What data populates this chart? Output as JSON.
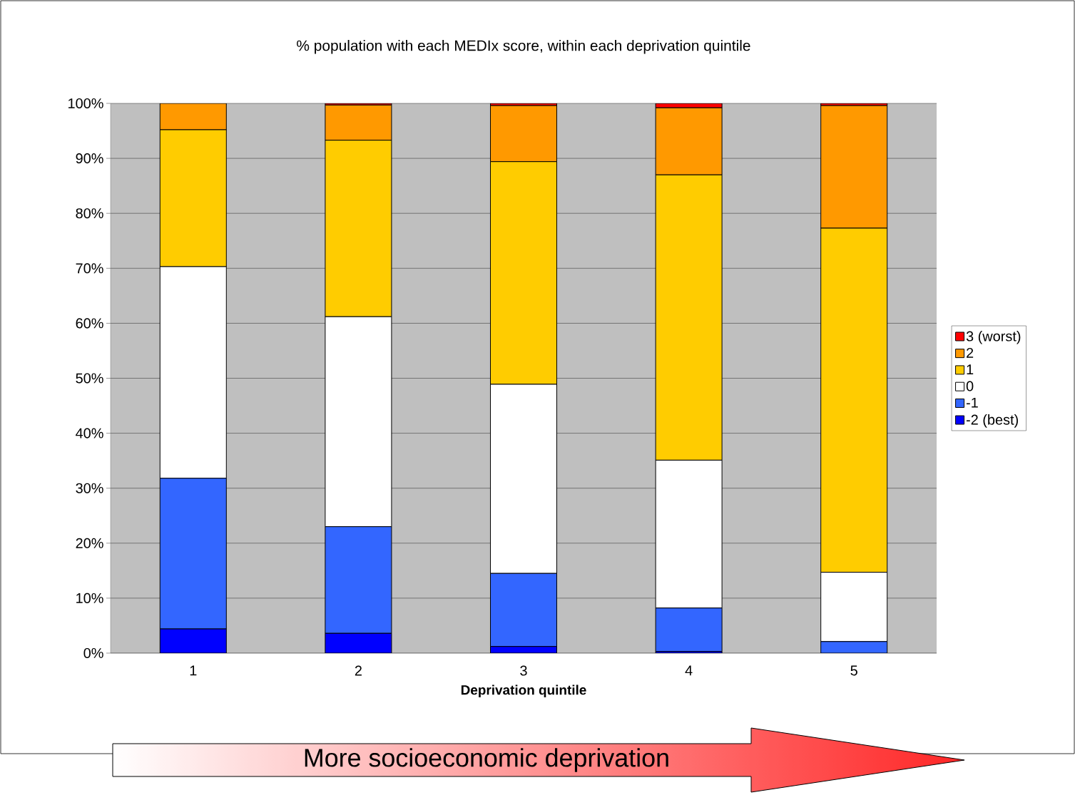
{
  "chart_data": {
    "type": "bar",
    "stacked": true,
    "title": "% population with each MEDIx score, within each deprivation quintile",
    "xlabel": "Deprivation quintile",
    "categories": [
      "1",
      "2",
      "3",
      "4",
      "5"
    ],
    "series": [
      {
        "name": "-2 (best)",
        "color": "#0000ff",
        "values": [
          4.4,
          3.6,
          1.2,
          0.3,
          0
        ]
      },
      {
        "name": "-1",
        "color": "#3366ff",
        "values": [
          27.4,
          19.4,
          13.3,
          7.9,
          2.1
        ]
      },
      {
        "name": "0",
        "color": "#ffffff",
        "values": [
          38.5,
          38.2,
          34.4,
          26.9,
          12.6
        ]
      },
      {
        "name": "1",
        "color": "#ffcc00",
        "values": [
          24.9,
          32.1,
          40.5,
          51.9,
          62.6
        ]
      },
      {
        "name": "2",
        "color": "#ff9900",
        "values": [
          4.8,
          6.4,
          10.2,
          12.2,
          22.3
        ]
      },
      {
        "name": "3 (worst)",
        "color": "#ff0000",
        "values": [
          0,
          0.3,
          0.4,
          0.8,
          0.4
        ]
      }
    ],
    "ylim": [
      0,
      100
    ],
    "yticks": [
      {
        "value": 0,
        "label": "0%"
      },
      {
        "value": 10,
        "label": "10%"
      },
      {
        "value": 20,
        "label": "20%"
      },
      {
        "value": 30,
        "label": "30%"
      },
      {
        "value": 40,
        "label": "40%"
      },
      {
        "value": 50,
        "label": "50%"
      },
      {
        "value": 60,
        "label": "60%"
      },
      {
        "value": 70,
        "label": "70%"
      },
      {
        "value": 80,
        "label": "80%"
      },
      {
        "value": 90,
        "label": "90%"
      },
      {
        "value": 100,
        "label": "100%"
      }
    ],
    "grid": "y",
    "legend": "right",
    "annotations": [
      "More socioeconomic deprivation"
    ]
  }
}
